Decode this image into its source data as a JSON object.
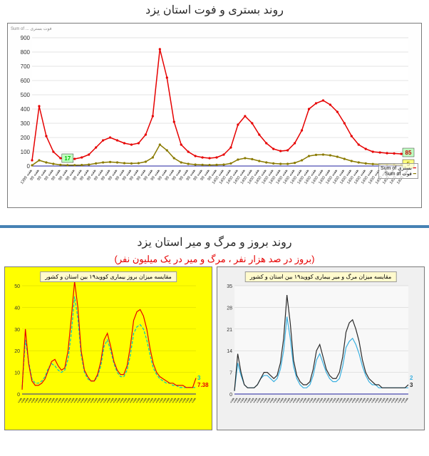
{
  "top_chart": {
    "title": "روند بستری و فوت استان یزد",
    "type": "line",
    "ylim": [
      0,
      900
    ],
    "ytick_step": 100,
    "yticks": [
      0,
      100,
      200,
      300,
      400,
      500,
      600,
      700,
      800,
      900
    ],
    "background_color": "#ffffff",
    "grid_color": "#c8c8c8",
    "series": [
      {
        "name": "بستری Sum of",
        "color": "#e60000",
        "marker": "dot",
        "values": [
          40,
          420,
          210,
          100,
          55,
          45,
          50,
          60,
          80,
          130,
          180,
          200,
          180,
          160,
          150,
          160,
          220,
          350,
          820,
          620,
          310,
          150,
          100,
          70,
          60,
          55,
          60,
          80,
          130,
          290,
          350,
          300,
          220,
          160,
          120,
          105,
          110,
          160,
          250,
          400,
          440,
          460,
          430,
          380,
          300,
          210,
          150,
          120,
          100,
          95,
          90,
          88,
          85,
          85
        ]
      },
      {
        "name": "فوت Sum of",
        "color": "#8a7a00",
        "marker": "dot",
        "values": [
          5,
          40,
          25,
          15,
          8,
          6,
          6,
          7,
          10,
          18,
          25,
          28,
          25,
          20,
          18,
          20,
          30,
          60,
          150,
          110,
          55,
          25,
          15,
          10,
          8,
          7,
          8,
          10,
          18,
          45,
          55,
          48,
          35,
          25,
          18,
          15,
          15,
          22,
          40,
          70,
          78,
          80,
          75,
          65,
          50,
          35,
          25,
          18,
          14,
          12,
          10,
          8,
          6,
          5
        ]
      }
    ],
    "callouts": [
      {
        "text": "17",
        "color": "#00c000",
        "bg": "#c0ffc0",
        "x_idx": 5,
        "y_val": 45
      },
      {
        "text": "85",
        "color": "#c00000",
        "bg": "#c0ffc0",
        "x_idx": 53,
        "y_val": 85,
        "series": 0
      },
      {
        "text": "5",
        "color": "#8a7a00",
        "bg": "#ffff80",
        "x_idx": 53,
        "y_val": 5,
        "series": 1
      }
    ],
    "x_axis_label_sample": "هفته",
    "x_year_labels": [
      "1399",
      "99",
      "99",
      "99",
      "99",
      "99",
      "99",
      "99",
      "99",
      "99",
      "99",
      "99",
      "99",
      "99",
      "99",
      "99",
      "99",
      "99",
      "99",
      "99",
      "99",
      "99",
      "99",
      "99",
      "99",
      "99",
      "99",
      "1400",
      "1400",
      "1400",
      "1400",
      "1400",
      "1400",
      "1400",
      "1400",
      "1400",
      "1400",
      "1400",
      "1400",
      "1400",
      "1400",
      "1400",
      "1400",
      "1400",
      "1400",
      "1400",
      "1400",
      "1400",
      "1400",
      "1400",
      "1400",
      "1400",
      "1400",
      "1400"
    ],
    "legend": [
      "بستری Sum of",
      "فوت Sum of"
    ]
  },
  "bottom_section": {
    "title": "روند بروز و مرگ و میر استان یزد",
    "subtitle": "(بروز در صد هزار نفر ، مرگ و میر در یک میلیون نفر)",
    "subtitle_color": "#e60000"
  },
  "bl_chart": {
    "type": "line",
    "mini_title": "مقایسه میزان بروز بیماری کووید۱۹ بین استان و کشور",
    "background_color": "#ffff00",
    "ylim": [
      0,
      50
    ],
    "series": [
      {
        "name": "کشور",
        "color": "#00c4c4",
        "dash": "4,2",
        "values": [
          3,
          25,
          15,
          7,
          5,
          5,
          6,
          8,
          12,
          14,
          13,
          11,
          10,
          11,
          16,
          28,
          45,
          35,
          18,
          10,
          7,
          6,
          6,
          8,
          13,
          22,
          25,
          20,
          14,
          10,
          8,
          8,
          11,
          18,
          28,
          31,
          32,
          30,
          25,
          18,
          12,
          9,
          7,
          6,
          5,
          5,
          4,
          4,
          3,
          3,
          3,
          3,
          3,
          3
        ]
      },
      {
        "name": "یزد",
        "color": "#e60000",
        "values": [
          2,
          30,
          14,
          6,
          4,
          4,
          5,
          7,
          11,
          15,
          16,
          13,
          11,
          12,
          20,
          35,
          52,
          40,
          20,
          11,
          8,
          6,
          6,
          9,
          15,
          25,
          28,
          22,
          15,
          11,
          9,
          9,
          13,
          22,
          34,
          38,
          39,
          36,
          30,
          21,
          14,
          10,
          8,
          7,
          6,
          5,
          5,
          4,
          4,
          4,
          3,
          3,
          3,
          7.38
        ]
      }
    ],
    "end_labels": [
      {
        "text": "7.38",
        "color": "#e60000"
      },
      {
        "text": "3",
        "color": "#00c4c4"
      }
    ]
  },
  "br_chart": {
    "type": "line",
    "mini_title": "مقایسه میزان مرگ و میر بیماری کووید۱۹ بین استان و کشور",
    "background_color": "#f0f0f0",
    "ylim": [
      0,
      35
    ],
    "series": [
      {
        "name": "کشور",
        "color": "#3ab0e0",
        "values": [
          1,
          10,
          6,
          3,
          2,
          2,
          2,
          3,
          5,
          6,
          6,
          5,
          4,
          5,
          8,
          14,
          25,
          18,
          9,
          5,
          3,
          2,
          2,
          3,
          6,
          11,
          13,
          10,
          7,
          5,
          4,
          4,
          5,
          9,
          15,
          17,
          18,
          16,
          13,
          9,
          6,
          4,
          3,
          3,
          2,
          2,
          2,
          2,
          2,
          2,
          2,
          2,
          2,
          2
        ]
      },
      {
        "name": "یزد",
        "color": "#2a2a2a",
        "values": [
          1,
          13,
          7,
          3,
          2,
          2,
          2,
          3,
          5,
          7,
          7,
          6,
          5,
          6,
          10,
          18,
          32,
          23,
          11,
          6,
          4,
          3,
          3,
          4,
          8,
          14,
          16,
          12,
          8,
          6,
          5,
          5,
          7,
          12,
          20,
          23,
          24,
          21,
          17,
          11,
          7,
          5,
          4,
          3,
          3,
          2,
          2,
          2,
          2,
          2,
          2,
          2,
          2,
          3
        ]
      }
    ],
    "end_labels": [
      {
        "text": "3",
        "color": "#2a2a2a"
      },
      {
        "text": "2",
        "color": "#3ab0e0"
      }
    ]
  }
}
